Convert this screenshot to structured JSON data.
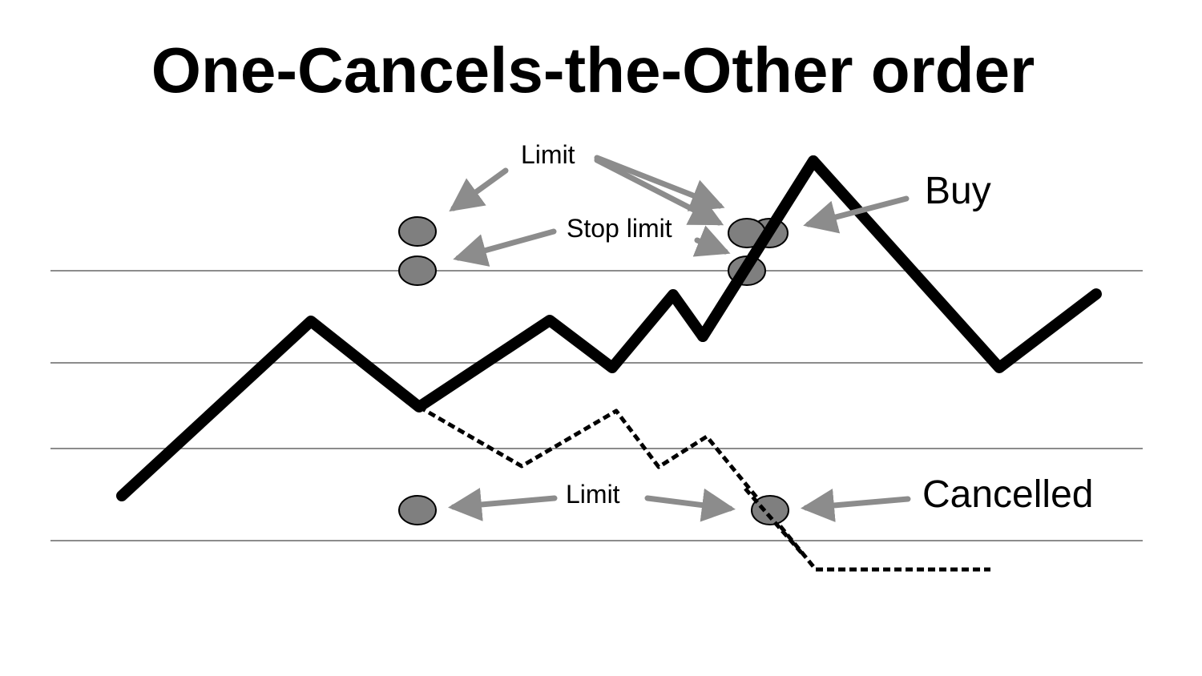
{
  "title": "One-Cancels-the-Other order",
  "labels": {
    "limit_top": "Limit",
    "stop_limit": "Stop limit",
    "buy": "Buy",
    "limit_bottom": "Limit",
    "cancelled": "Cancelled"
  },
  "colors": {
    "price_line": "#000000",
    "grid_line": "#8c8c8c",
    "order_marker_fill": "#7f7f7f",
    "order_marker_stroke": "#000000",
    "arrow": "#8c8c8c"
  }
}
